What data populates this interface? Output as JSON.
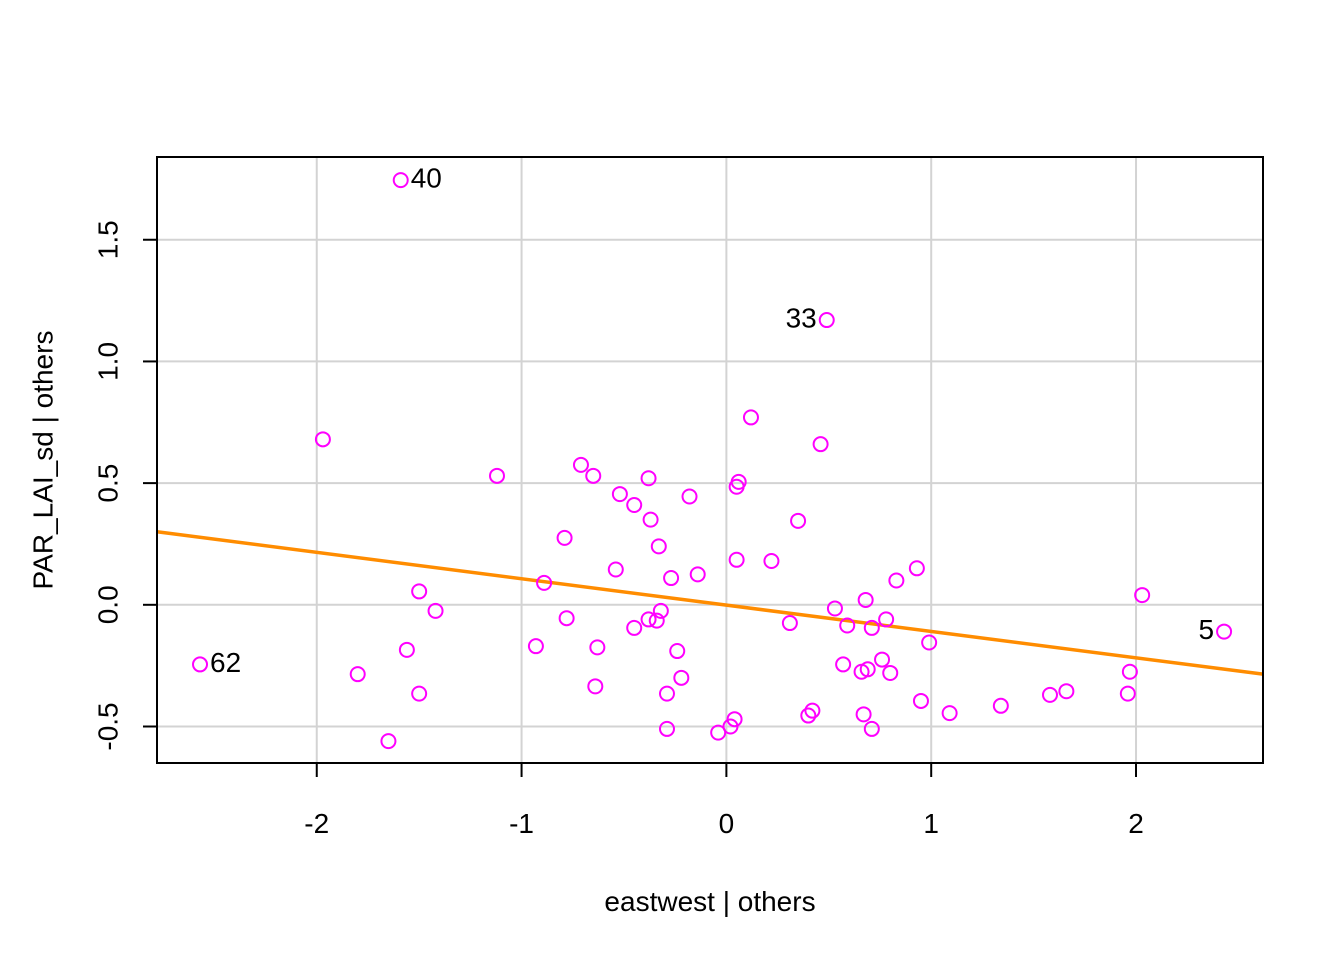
{
  "chart_data": {
    "type": "scatter",
    "title": "",
    "xlabel": "eastwest | others",
    "ylabel": "PAR_LAI_sd  | others",
    "xlim": [
      -2.78,
      2.62
    ],
    "ylim": [
      -0.65,
      1.84
    ],
    "x_ticks": [
      -2,
      -1,
      0,
      1,
      2
    ],
    "x_tick_labels": [
      "-2",
      "-1",
      "0",
      "1",
      "2"
    ],
    "y_ticks": [
      -0.5,
      0.0,
      0.5,
      1.0,
      1.5
    ],
    "y_tick_labels": [
      "-0.5",
      "0.0",
      "0.5",
      "1.0",
      "1.5"
    ],
    "grid": true,
    "colors": {
      "points": "#ff00ff",
      "fit_line": "#ff8c00",
      "grid": "#d3d3d3",
      "axis": "#000000"
    },
    "fit_line": {
      "x": [
        -2.78,
        2.62
      ],
      "y": [
        0.3,
        -0.285
      ]
    },
    "points": [
      {
        "x": -1.59,
        "y": 1.745,
        "label": "40",
        "label_side": "right"
      },
      {
        "x": 0.49,
        "y": 1.17,
        "label": "33",
        "label_side": "left"
      },
      {
        "x": -2.57,
        "y": -0.245,
        "label": "62",
        "label_side": "right"
      },
      {
        "x": 2.43,
        "y": -0.11,
        "label": "5",
        "label_side": "left"
      },
      {
        "x": -1.97,
        "y": 0.68
      },
      {
        "x": -1.12,
        "y": 0.53
      },
      {
        "x": -1.8,
        "y": -0.285
      },
      {
        "x": -1.65,
        "y": -0.56
      },
      {
        "x": -1.56,
        "y": -0.185
      },
      {
        "x": -1.5,
        "y": 0.055
      },
      {
        "x": -1.5,
        "y": -0.365
      },
      {
        "x": -1.42,
        "y": -0.025
      },
      {
        "x": -0.93,
        "y": -0.17
      },
      {
        "x": -0.89,
        "y": 0.09
      },
      {
        "x": -0.79,
        "y": 0.275
      },
      {
        "x": -0.78,
        "y": -0.055
      },
      {
        "x": -0.71,
        "y": 0.575
      },
      {
        "x": -0.65,
        "y": 0.53
      },
      {
        "x": -0.64,
        "y": -0.335
      },
      {
        "x": -0.63,
        "y": -0.175
      },
      {
        "x": -0.54,
        "y": 0.145
      },
      {
        "x": -0.52,
        "y": 0.455
      },
      {
        "x": -0.45,
        "y": 0.41
      },
      {
        "x": -0.45,
        "y": -0.095
      },
      {
        "x": -0.38,
        "y": 0.52
      },
      {
        "x": -0.38,
        "y": -0.06
      },
      {
        "x": -0.37,
        "y": 0.35
      },
      {
        "x": -0.34,
        "y": -0.065
      },
      {
        "x": -0.33,
        "y": 0.24
      },
      {
        "x": -0.32,
        "y": -0.025
      },
      {
        "x": -0.29,
        "y": -0.365
      },
      {
        "x": -0.29,
        "y": -0.51
      },
      {
        "x": -0.27,
        "y": 0.11
      },
      {
        "x": -0.24,
        "y": -0.19
      },
      {
        "x": -0.22,
        "y": -0.3
      },
      {
        "x": -0.18,
        "y": 0.445
      },
      {
        "x": -0.14,
        "y": 0.125
      },
      {
        "x": -0.04,
        "y": -0.525
      },
      {
        "x": 0.02,
        "y": -0.5
      },
      {
        "x": 0.04,
        "y": -0.47
      },
      {
        "x": 0.05,
        "y": 0.485
      },
      {
        "x": 0.06,
        "y": 0.505
      },
      {
        "x": 0.05,
        "y": 0.185
      },
      {
        "x": 0.12,
        "y": 0.77
      },
      {
        "x": 0.22,
        "y": 0.18
      },
      {
        "x": 0.31,
        "y": -0.075
      },
      {
        "x": 0.35,
        "y": 0.345
      },
      {
        "x": 0.4,
        "y": -0.455
      },
      {
        "x": 0.42,
        "y": -0.435
      },
      {
        "x": 0.46,
        "y": 0.66
      },
      {
        "x": 0.53,
        "y": -0.015
      },
      {
        "x": 0.57,
        "y": -0.245
      },
      {
        "x": 0.59,
        "y": -0.085
      },
      {
        "x": 0.66,
        "y": -0.275
      },
      {
        "x": 0.67,
        "y": -0.45
      },
      {
        "x": 0.68,
        "y": 0.02
      },
      {
        "x": 0.69,
        "y": -0.265
      },
      {
        "x": 0.71,
        "y": -0.51
      },
      {
        "x": 0.71,
        "y": -0.095
      },
      {
        "x": 0.76,
        "y": -0.225
      },
      {
        "x": 0.78,
        "y": -0.06
      },
      {
        "x": 0.8,
        "y": -0.28
      },
      {
        "x": 0.83,
        "y": 0.1
      },
      {
        "x": 0.93,
        "y": 0.15
      },
      {
        "x": 0.95,
        "y": -0.395
      },
      {
        "x": 0.99,
        "y": -0.155
      },
      {
        "x": 1.09,
        "y": -0.445
      },
      {
        "x": 1.34,
        "y": -0.415
      },
      {
        "x": 1.58,
        "y": -0.37
      },
      {
        "x": 1.66,
        "y": -0.355
      },
      {
        "x": 1.96,
        "y": -0.365
      },
      {
        "x": 1.97,
        "y": -0.275
      },
      {
        "x": 2.03,
        "y": 0.04
      }
    ]
  }
}
